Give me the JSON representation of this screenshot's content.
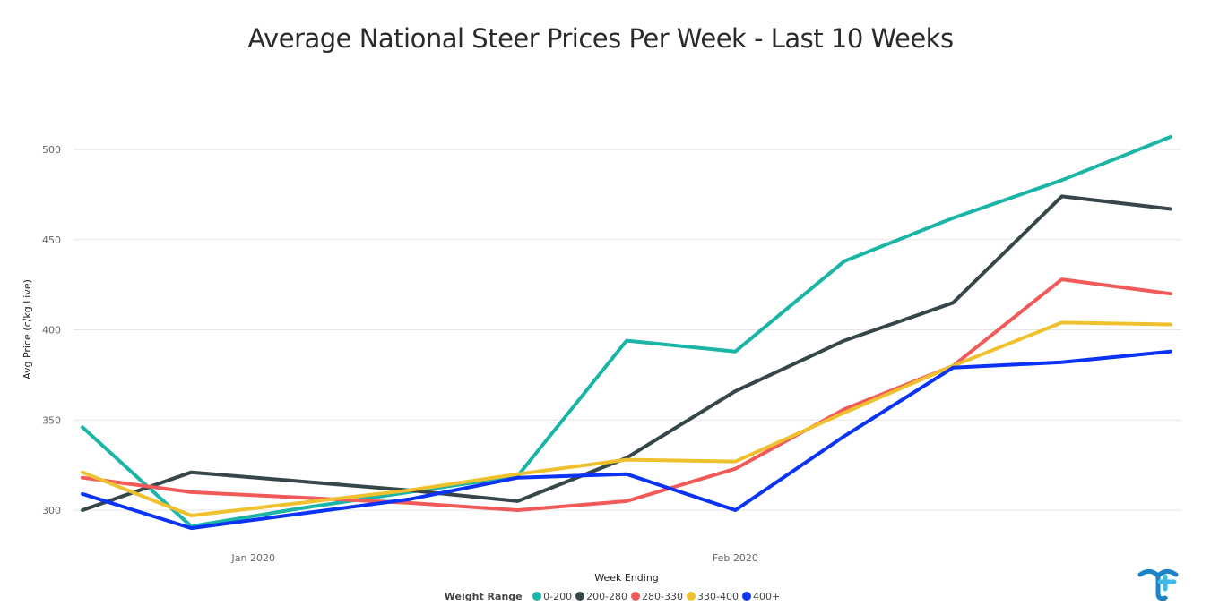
{
  "chart_data": {
    "type": "line",
    "title": "Average National Steer Prices Per Week - Last 10 Weeks",
    "xlabel": "Week Ending",
    "ylabel": "Avg Price (c/kg Live)",
    "x_tick_labels": [
      "Jan 2020",
      "Feb 2020"
    ],
    "y_ticks": [
      300,
      350,
      400,
      450,
      500
    ],
    "ylim": [
      290,
      510
    ],
    "grid": true,
    "legend": {
      "title": "Weight Range",
      "placement": "bottom-center"
    },
    "x": [
      "2019-12-21",
      "2019-12-28",
      "2020-01-04",
      "2020-01-11",
      "2020-01-18",
      "2020-01-25",
      "2020-02-01",
      "2020-02-08",
      "2020-02-15",
      "2020-02-22",
      "2020-02-29"
    ],
    "series": [
      {
        "name": "0-200",
        "color": "#1ab5a7",
        "values": [
          346,
          291,
          301,
          310,
          319,
          394,
          388,
          438,
          462,
          483,
          507
        ]
      },
      {
        "name": "200-280",
        "color": "#374649",
        "values": [
          300,
          321,
          316,
          311,
          305,
          329,
          366,
          394,
          415,
          474,
          467
        ]
      },
      {
        "name": "280-330",
        "color": "#f25a5a",
        "values": [
          318,
          310,
          307,
          304,
          300,
          305,
          323,
          356,
          380,
          428,
          420
        ]
      },
      {
        "name": "330-400",
        "color": "#f0c12e",
        "values": [
          321,
          297,
          304,
          311,
          320,
          328,
          327,
          354,
          380,
          404,
          403
        ]
      },
      {
        "name": "400+",
        "color": "#0b33f5",
        "values": [
          309,
          290,
          298,
          306,
          318,
          320,
          300,
          341,
          379,
          382,
          388
        ]
      }
    ]
  }
}
